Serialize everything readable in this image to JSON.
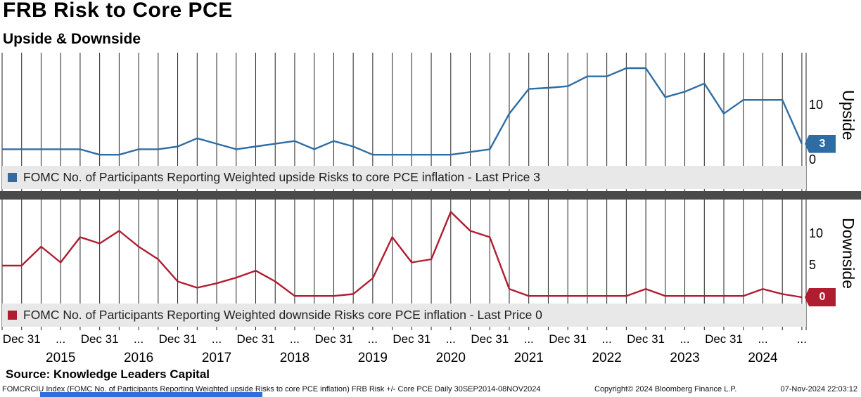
{
  "header": {
    "title": "FRB Risk to Core PCE",
    "subtitle": "Upside & Downside"
  },
  "chart_data": {
    "type": "line",
    "x": [
      "2014-09-30",
      "2014-12-31",
      "2015-03-31",
      "2015-06-30",
      "2015-09-30",
      "2015-12-31",
      "2016-03-31",
      "2016-06-30",
      "2016-09-30",
      "2016-12-31",
      "2017-03-31",
      "2017-06-30",
      "2017-09-30",
      "2017-12-31",
      "2018-03-31",
      "2018-06-30",
      "2018-09-30",
      "2018-12-31",
      "2019-03-31",
      "2019-06-30",
      "2019-09-30",
      "2019-12-31",
      "2020-03-31",
      "2020-06-30",
      "2020-09-30",
      "2020-12-31",
      "2021-03-31",
      "2021-06-30",
      "2021-09-30",
      "2021-12-31",
      "2022-03-31",
      "2022-06-30",
      "2022-09-30",
      "2022-12-31",
      "2023-03-31",
      "2023-06-30",
      "2023-09-30",
      "2023-12-31",
      "2024-03-31",
      "2024-06-30",
      "2024-09-30",
      "2024-11-08"
    ],
    "x_axis": {
      "tick_label_dec": "Dec 31",
      "tick_label_ellipsis": "...",
      "years": [
        "2015",
        "2016",
        "2017",
        "2018",
        "2019",
        "2020",
        "2021",
        "2022",
        "2023",
        "2024"
      ],
      "gridlines": "quarterly"
    },
    "panels": [
      {
        "id": "upside",
        "axis_label": "Upside",
        "line_color": "#2e6da4",
        "legend_label": "FOMC No. of Participants Reporting Weighted upside Risks to core PCE inflation - Last Price 3",
        "last_price": "3",
        "yticks": [
          "10",
          "0"
        ],
        "ylim": [
          0,
          19
        ],
        "values": [
          2,
          2,
          2,
          2,
          2,
          1,
          1,
          2,
          2,
          2.5,
          4,
          3,
          2,
          2.5,
          3,
          3.5,
          2,
          3.5,
          2.5,
          1,
          1,
          1,
          1,
          1,
          1.5,
          2,
          8.5,
          13,
          13.2,
          13.5,
          15.3,
          15.3,
          16.8,
          16.8,
          11.5,
          12.5,
          14,
          8.5,
          11,
          11,
          11,
          3
        ]
      },
      {
        "id": "downside",
        "axis_label": "Downside",
        "line_color": "#b01c30",
        "legend_label": "FOMC No. of Participants Reporting Weighted downside Risks core PCE inflation - Last Price 0",
        "last_price": "0",
        "yticks": [
          "10",
          "5"
        ],
        "ylim": [
          0,
          14.8
        ],
        "values": [
          5,
          5,
          8,
          5.5,
          9.5,
          8.5,
          10.5,
          8,
          6,
          2.5,
          1.5,
          2.2,
          3.1,
          4.2,
          2.5,
          0.2,
          0.2,
          0.2,
          0.5,
          3,
          9.5,
          5.5,
          6,
          13.5,
          10.5,
          9.5,
          1.3,
          0.2,
          0.2,
          0.2,
          0.2,
          0.2,
          0.2,
          1.3,
          0.2,
          0.2,
          0.2,
          0.2,
          0.2,
          1.3,
          0.5,
          0
        ]
      }
    ]
  },
  "source_line": "Source: Knowledge Leaders Capital",
  "footnote": {
    "left": "FOMCRCIU Index (FOMC No. of Participants Reporting Weighted upside Risks to core PCE inflation) FRB Risk +/- Core PCE  Daily 30SEP2014-08NOV2024",
    "copyright": "Copyright© 2024 Bloomberg Finance L.P.",
    "timestamp": "07-Nov-2024 22:03:12"
  }
}
